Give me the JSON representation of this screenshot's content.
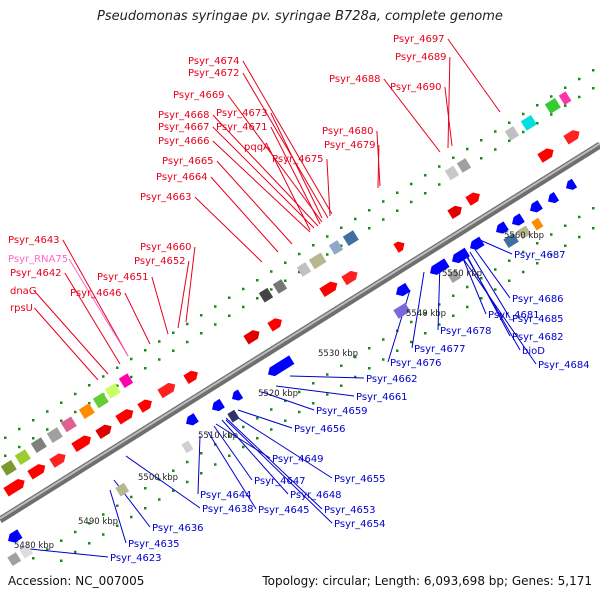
{
  "title": "Pseudomonas syringae pv. syringae B728a, complete genome",
  "footer": {
    "accession": "Accession: NC_007005",
    "meta": "Topology: circular; Length: 6,093,698 bp; Genes: 5,171"
  },
  "colors": {
    "forward_label": "#e8001c",
    "reverse_label": "#0000cc",
    "rna_label": "#ff66cc",
    "forward_gene": "#ff0000",
    "reverse_gene": "#0000ff",
    "backbone": "#8a8a8a",
    "tick": "#1a8a1a"
  },
  "scale_labels": [
    "5480 kbp",
    "5490 kbp",
    "5500 kbp",
    "5510 kbp",
    "5520 kbp",
    "5530 kbp",
    "5540 kbp",
    "5550 kbp",
    "5560 kbp"
  ],
  "forward_labels": [
    "Psyr_4697",
    "Psyr_4689",
    "Psyr_4674",
    "Psyr_4672",
    "Psyr_4688",
    "Psyr_4690",
    "Psyr_4669",
    "Psyr_4673",
    "Psyr_4668",
    "Psyr_4667",
    "Psyr_4671",
    "Psyr_4680",
    "Psyr_4666",
    "pqqA",
    "Psyr_4679",
    "Psyr_4675",
    "Psyr_4665",
    "Psyr_4664",
    "Psyr_4663",
    "Psyr_4643",
    "Psyr_4660",
    "Psyr_RNA75",
    "Psyr_4652",
    "Psyr_4642",
    "Psyr_4651",
    "dnaG",
    "Psyr_4646",
    "rpsU"
  ],
  "reverse_labels": [
    "Psyr_4687",
    "Psyr_4686",
    "Psyr_4685",
    "Psyr_4681",
    "Psyr_4682",
    "Psyr_4678",
    "Psyr_4677",
    "bioD",
    "Psyr_4684",
    "Psyr_4676",
    "Psyr_4662",
    "Psyr_4661",
    "Psyr_4659",
    "Psyr_4656",
    "Psyr_4649",
    "Psyr_4655",
    "Psyr_4647",
    "Psyr_4644",
    "Psyr_4648",
    "Psyr_4638",
    "Psyr_4645",
    "Psyr_4653",
    "Psyr_4636",
    "Psyr_4654",
    "Psyr_4635",
    "Psyr_4623"
  ]
}
